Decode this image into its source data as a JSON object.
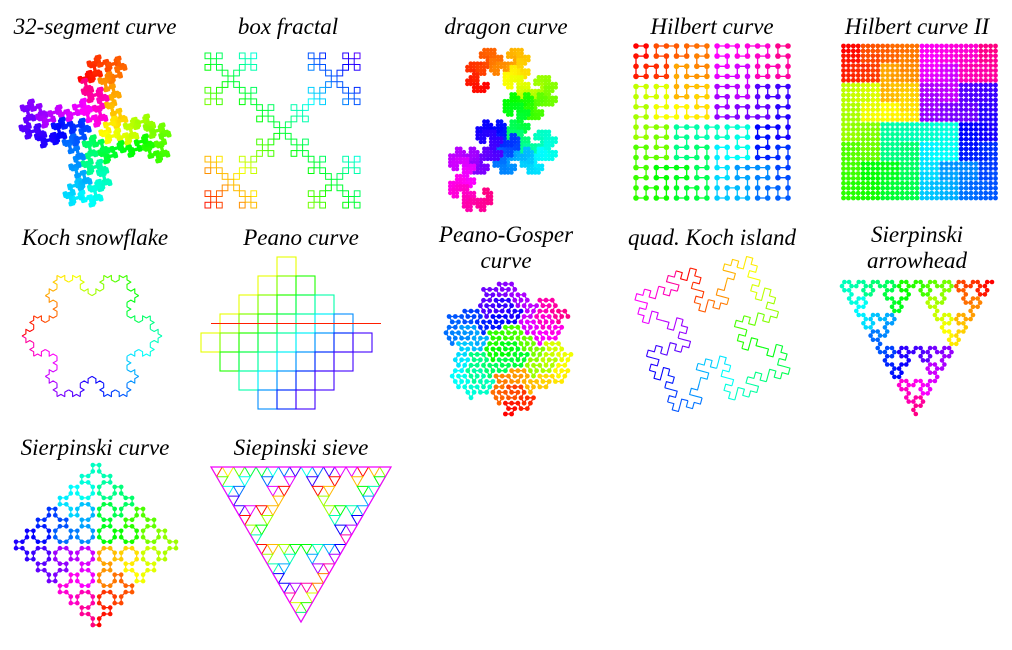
{
  "figure": {
    "title": "",
    "panels": [
      {
        "id": "seg32",
        "label": "32-segment curve",
        "style": "dots"
      },
      {
        "id": "box",
        "label": "box fractal",
        "style": "line"
      },
      {
        "id": "dragon",
        "label": "dragon curve",
        "style": "dots"
      },
      {
        "id": "hilbert",
        "label": "Hilbert curve",
        "style": "dots"
      },
      {
        "id": "hilbert2",
        "label": "Hilbert curve II",
        "style": "dots"
      },
      {
        "id": "koch",
        "label": "Koch snowflake",
        "style": "line"
      },
      {
        "id": "peano",
        "label": "Peano curve",
        "style": "line"
      },
      {
        "id": "gosper",
        "label": "Peano-Gosper curve",
        "style": "dots"
      },
      {
        "id": "quadkoch",
        "label": "quad. Koch island",
        "style": "line"
      },
      {
        "id": "arrowhead",
        "label": "Sierpinski arrowhead",
        "style": "dots"
      },
      {
        "id": "sierpcurve",
        "label": "Sierpinski curve",
        "style": "dots"
      },
      {
        "id": "sieve",
        "label": "Siepinski sieve",
        "style": "line"
      }
    ],
    "color_scale": "rainbow: red → orange → yellow → green → cyan → blue → violet → magenta → red"
  }
}
